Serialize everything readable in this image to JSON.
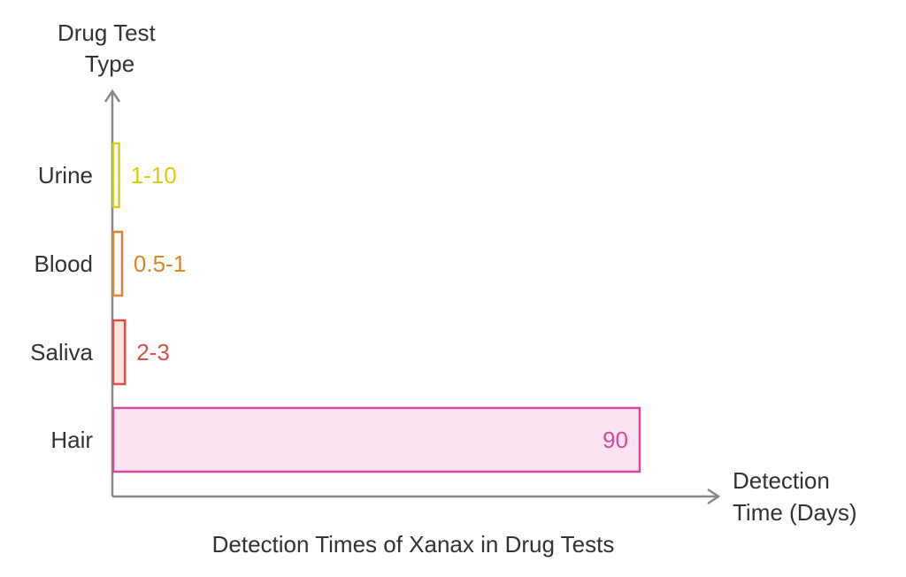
{
  "chart_data": {
    "type": "bar",
    "orientation": "horizontal",
    "title": "Detection Times of Xanax in Drug Tests",
    "ylabel": "Drug Test Type",
    "xlabel": "Detection Time (Days)",
    "categories": [
      "Urine",
      "Blood",
      "Saliva",
      "Hair"
    ],
    "values": [
      1,
      0.5,
      2,
      90
    ],
    "value_labels": [
      "1-10",
      "0.5-1",
      "2-3",
      "90"
    ],
    "colors": [
      {
        "stroke": "#e0cc10",
        "fill": "#ffffff",
        "text": "#e0cc10"
      },
      {
        "stroke": "#e0852a",
        "fill": "#ffffff",
        "text": "#e0852a"
      },
      {
        "stroke": "#e0504a",
        "fill": "#fbe4de",
        "text": "#e0504a"
      },
      {
        "stroke": "#d64a9e",
        "fill": "#fbe3f2",
        "text": "#d64a9e"
      }
    ],
    "axis_color": "#888888",
    "grid": false,
    "legend": "none"
  }
}
